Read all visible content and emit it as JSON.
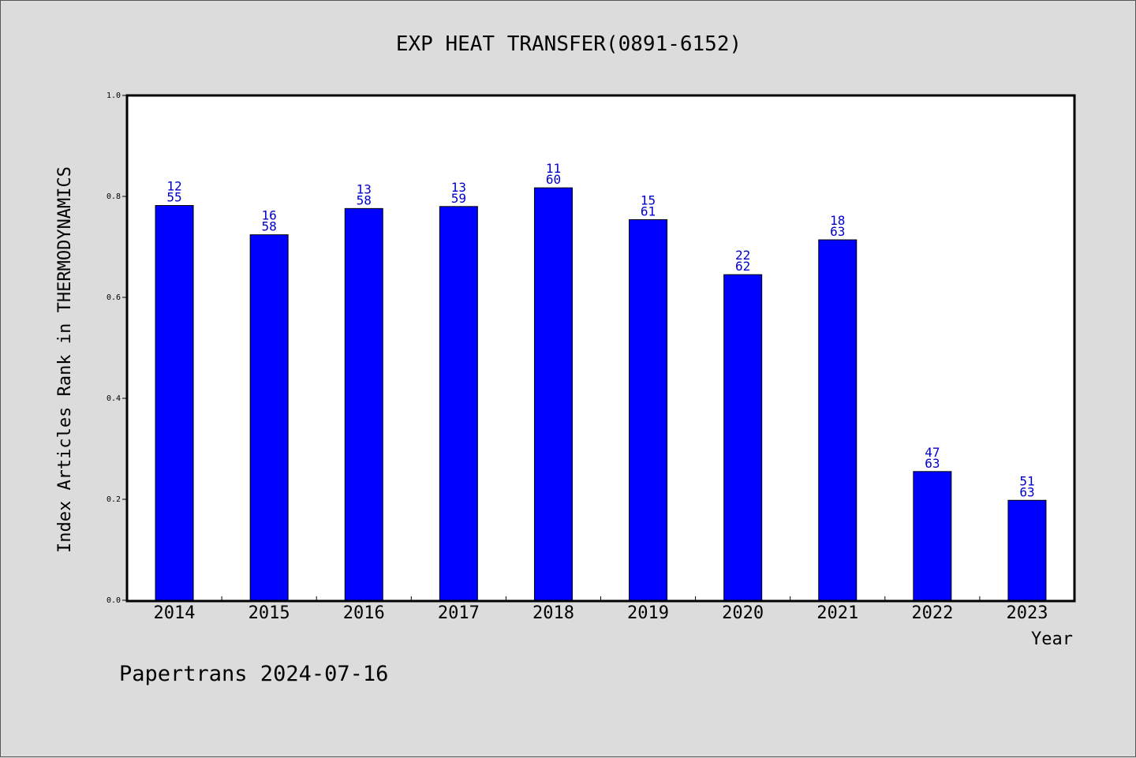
{
  "chart_data": {
    "type": "bar",
    "title": "EXP HEAT TRANSFER(0891-6152)",
    "xlabel": "Year",
    "ylabel": "Index Articles Rank in THERMODYNAMICS",
    "categories": [
      "2014",
      "2015",
      "2016",
      "2017",
      "2018",
      "2019",
      "2020",
      "2021",
      "2022",
      "2023"
    ],
    "values": [
      0.782,
      0.724,
      0.776,
      0.78,
      0.817,
      0.754,
      0.645,
      0.714,
      0.255,
      0.198
    ],
    "rank": [
      "12",
      "16",
      "13",
      "13",
      "11",
      "15",
      "22",
      "18",
      "47",
      "51"
    ],
    "total": [
      "55",
      "58",
      "58",
      "59",
      "60",
      "61",
      "62",
      "63",
      "63",
      "63"
    ],
    "ylim": [
      0,
      1.0
    ],
    "yticks": [
      "0.0",
      "0.2",
      "0.4",
      "0.6",
      "0.8",
      "1.0"
    ],
    "bar_color": "#0000ff",
    "label_color": "#0000cc",
    "grid": false
  },
  "footer": "Papertrans 2024-07-16"
}
